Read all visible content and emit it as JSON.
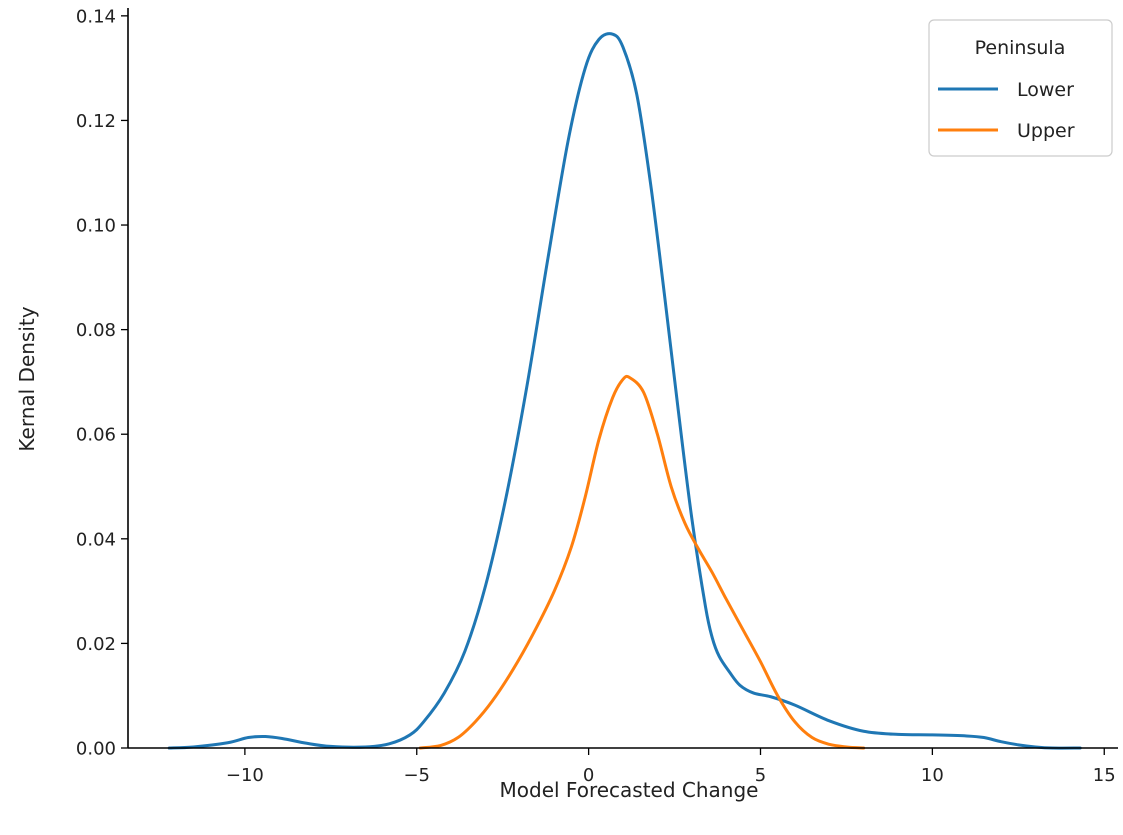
{
  "chart_data": {
    "type": "line",
    "title": "",
    "xlabel": "Model Forecasted Change",
    "ylabel": "Kernal Density",
    "xlim": [
      -13.4,
      15.4
    ],
    "ylim": [
      0,
      0.1415
    ],
    "xticks": [
      -10,
      -5,
      0,
      5,
      10,
      15
    ],
    "xtick_labels": [
      "−10",
      "−5",
      "0",
      "5",
      "10",
      "15"
    ],
    "yticks": [
      0,
      0.02,
      0.04,
      0.06,
      0.08,
      0.1,
      0.12,
      0.14
    ],
    "ytick_labels": [
      "0.00",
      "0.02",
      "0.04",
      "0.06",
      "0.08",
      "0.10",
      "0.12",
      "0.14"
    ],
    "grid": false,
    "legend": {
      "title": "Peninsula",
      "position": "top-right",
      "entries": [
        "Lower",
        "Upper"
      ]
    },
    "series": [
      {
        "name": "Lower",
        "color": "#1f77b4",
        "x": [
          -12.2,
          -11.5,
          -10.5,
          -9.9,
          -9.4,
          -8.9,
          -8.2,
          -7.5,
          -6.5,
          -5.8,
          -5.2,
          -4.8,
          -4.2,
          -3.6,
          -3.0,
          -2.4,
          -1.8,
          -1.2,
          -0.6,
          -0.1,
          0.3,
          0.7,
          1.0,
          1.4,
          1.8,
          2.2,
          2.6,
          3.0,
          3.4,
          3.6,
          3.8,
          4.1,
          4.4,
          4.8,
          5.3,
          6.0,
          7.0,
          8.0,
          9.0,
          10.0,
          11.0,
          11.5,
          12.0,
          12.5,
          13.0,
          13.5,
          14.3
        ],
        "y": [
          0.0,
          0.0002,
          0.001,
          0.002,
          0.0022,
          0.0018,
          0.0009,
          0.0003,
          0.0002,
          0.0008,
          0.0025,
          0.005,
          0.0105,
          0.0185,
          0.031,
          0.048,
          0.069,
          0.093,
          0.116,
          0.13,
          0.1355,
          0.1365,
          0.134,
          0.125,
          0.108,
          0.087,
          0.065,
          0.044,
          0.027,
          0.021,
          0.0175,
          0.0145,
          0.012,
          0.0105,
          0.0098,
          0.0082,
          0.0052,
          0.0032,
          0.0026,
          0.0025,
          0.0023,
          0.002,
          0.0012,
          0.0006,
          0.0002,
          0.0,
          0.0
        ]
      },
      {
        "name": "Upper",
        "color": "#ff7f0e",
        "x": [
          -4.9,
          -4.3,
          -3.8,
          -3.3,
          -2.8,
          -2.2,
          -1.6,
          -1.0,
          -0.5,
          -0.1,
          0.3,
          0.7,
          1.0,
          1.2,
          1.6,
          2.0,
          2.4,
          2.8,
          3.2,
          3.6,
          4.0,
          4.5,
          5.0,
          5.5,
          6.0,
          6.5,
          7.0,
          7.5,
          8.0
        ],
        "y": [
          0.0,
          0.0005,
          0.002,
          0.005,
          0.009,
          0.015,
          0.022,
          0.03,
          0.0385,
          0.048,
          0.059,
          0.067,
          0.0705,
          0.0708,
          0.068,
          0.06,
          0.05,
          0.043,
          0.038,
          0.0335,
          0.0285,
          0.0225,
          0.0165,
          0.01,
          0.005,
          0.002,
          0.0007,
          0.0002,
          0.0
        ]
      }
    ]
  }
}
